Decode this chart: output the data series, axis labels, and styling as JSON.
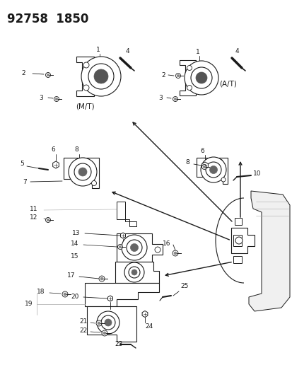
{
  "bg_color": "#ffffff",
  "fig_width": 4.14,
  "fig_height": 5.33,
  "dpi": 100,
  "title": "92758  1850",
  "dark": "#1a1a1a",
  "gray": "#888888",
  "lightgray": "#cccccc"
}
